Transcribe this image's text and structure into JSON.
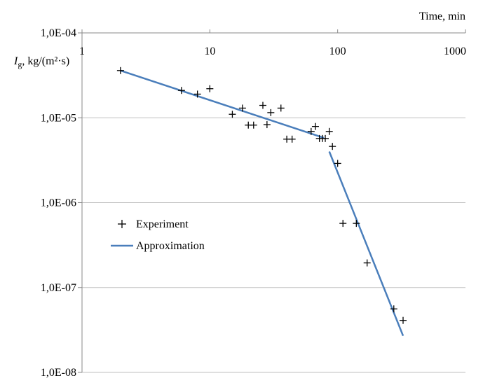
{
  "chart_data": {
    "type": "scatter",
    "title": "",
    "xlabel": "Time, min",
    "ylabel_main": "I",
    "ylabel_sub": "g",
    "ylabel_rest": ", kg/(m²·s)",
    "x_scale": "log",
    "y_scale": "log",
    "xlim": [
      1,
      1000
    ],
    "ylim": [
      1e-08,
      0.0001
    ],
    "x_ticks": [
      1,
      10,
      100,
      1000
    ],
    "x_tick_labels": [
      "1",
      "10",
      "100",
      "1000"
    ],
    "y_ticks": [
      0.0001,
      1e-05,
      1e-06,
      1e-07,
      1e-08
    ],
    "y_tick_labels": [
      "1,0E-04",
      "1,0E-05",
      "1,0E-06",
      "1,0E-07",
      "1,0E-08"
    ],
    "grid": "horizontal",
    "legend_position": "center-left",
    "series": [
      {
        "name": "Experiment",
        "kind": "markers",
        "marker": "plus",
        "color": "#000000",
        "points": [
          [
            2,
            3.6e-05
          ],
          [
            6,
            2.1e-05
          ],
          [
            8,
            1.9e-05
          ],
          [
            10,
            2.2e-05
          ],
          [
            15,
            1.1e-05
          ],
          [
            18,
            1.3e-05
          ],
          [
            20,
            8.2e-06
          ],
          [
            22,
            8.2e-06
          ],
          [
            26,
            1.4e-05
          ],
          [
            28,
            8.3e-06
          ],
          [
            30,
            1.15e-05
          ],
          [
            36,
            1.3e-05
          ],
          [
            40,
            5.6e-06
          ],
          [
            44,
            5.6e-06
          ],
          [
            62,
            6.9e-06
          ],
          [
            67,
            7.9e-06
          ],
          [
            72,
            5.7e-06
          ],
          [
            76,
            5.7e-06
          ],
          [
            80,
            5.7e-06
          ],
          [
            86,
            6.9e-06
          ],
          [
            91,
            4.6e-06
          ],
          [
            100,
            2.9e-06
          ],
          [
            110,
            5.7e-07
          ],
          [
            140,
            5.7e-07
          ],
          [
            170,
            1.95e-07
          ],
          [
            275,
            5.6e-08
          ],
          [
            325,
            4.1e-08
          ]
        ]
      },
      {
        "name": "Approximation",
        "kind": "lines",
        "color": "#4a7ebb",
        "segments": [
          [
            [
              2,
              3.6e-05
            ],
            [
              78,
              5.8e-06
            ]
          ],
          [
            [
              86,
              4e-06
            ],
            [
              325,
              2.7e-08
            ]
          ]
        ]
      }
    ]
  }
}
